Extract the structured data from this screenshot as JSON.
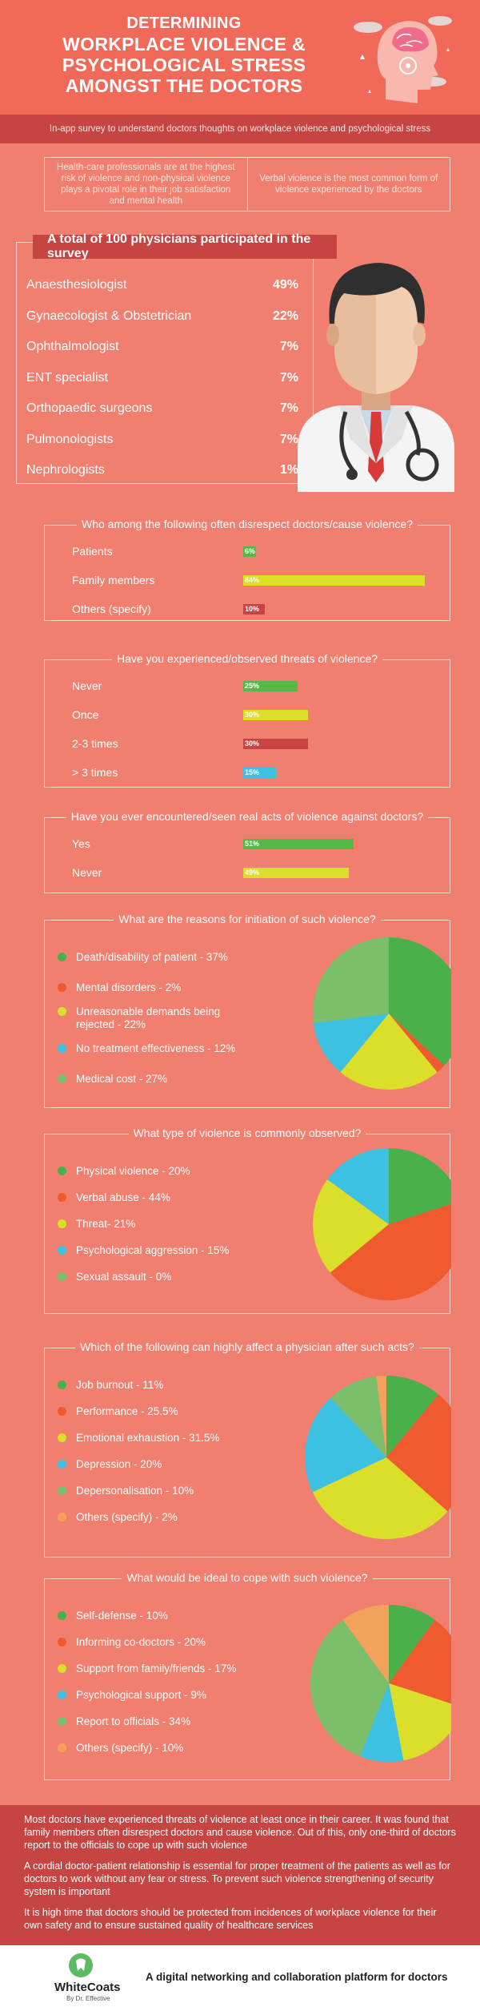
{
  "header": {
    "title_line1": "DETERMINING",
    "title_line2": "WORKPLACE VIOLENCE &",
    "title_line3": "PSYCHOLOGICAL STRESS",
    "title_line4": "AMONGST THE DOCTORS"
  },
  "banner": "In-app survey to understand doctors thoughts on workplace violence and psychological stress",
  "intro": {
    "left": "Health-care professionals are at the highest risk of violence and non-physical violence plays a pivotal role in their job satisfaction and mental health",
    "right": "Verbal violence is the most common form of violence experienced by the doctors"
  },
  "physicians": {
    "heading": "A total of 100 physicians participated in the survey",
    "rows": [
      {
        "label": "Anaesthesiologist",
        "pct": "49%"
      },
      {
        "label": "Gynaecologist & Obstetrician",
        "pct": "22%"
      },
      {
        "label": "Ophthalmologist",
        "pct": "7%"
      },
      {
        "label": "ENT specialist",
        "pct": "7%"
      },
      {
        "label": "Orthopaedic surgeons",
        "pct": "7%"
      },
      {
        "label": "Pulmonologists",
        "pct": "7%"
      },
      {
        "label": "Nephrologists",
        "pct": "1%"
      }
    ]
  },
  "q1": {
    "title": "Who among the following often disrespect doctors/cause violence?",
    "rows": [
      {
        "label": "Patients",
        "value": 6,
        "text": "6%",
        "color": "#55b947"
      },
      {
        "label": "Family members",
        "value": 84,
        "text": "84%",
        "color": "#dcdf2a"
      },
      {
        "label": "Others (specify)",
        "value": 10,
        "text": "10%",
        "color": "#c64542"
      }
    ]
  },
  "q2": {
    "title": "Have you experienced/observed threats of violence?",
    "rows": [
      {
        "label": "Never",
        "value": 25,
        "text": "25%",
        "color": "#55b947"
      },
      {
        "label": "Once",
        "value": 30,
        "text": "30%",
        "color": "#dcdf2a"
      },
      {
        "label": "2-3 times",
        "value": 30,
        "text": "30%",
        "color": "#c64542"
      },
      {
        "label": "> 3 times",
        "value": 15,
        "text": "15%",
        "color": "#3cc2e0"
      }
    ]
  },
  "q3": {
    "title": "Have you ever encountered/seen real acts of violence against doctors?",
    "rows": [
      {
        "label": "Yes",
        "value": 51,
        "text": "51%",
        "color": "#55b947"
      },
      {
        "label": "Never",
        "value": 49,
        "text": "49%",
        "color": "#dcdf2a"
      }
    ]
  },
  "chart_data": [
    {
      "type": "bar",
      "title": "Who among the following often disrespect doctors/cause violence?",
      "categories": [
        "Patients",
        "Family members",
        "Others (specify)"
      ],
      "values": [
        6,
        84,
        10
      ]
    },
    {
      "type": "bar",
      "title": "Have you experienced/observed threats of violence?",
      "categories": [
        "Never",
        "Once",
        "2-3 times",
        "> 3 times"
      ],
      "values": [
        25,
        30,
        30,
        15
      ]
    },
    {
      "type": "bar",
      "title": "Have you ever encountered/seen real acts of violence against doctors?",
      "categories": [
        "Yes",
        "Never"
      ],
      "values": [
        51,
        49
      ]
    },
    {
      "type": "pie",
      "title": "What are the reasons for initiation of such violence?",
      "slices": [
        {
          "label": "Death/disability of patient - 37%",
          "value": 37,
          "color": "#49b04a"
        },
        {
          "label": "Mental disorders - 2%",
          "value": 2,
          "color": "#ef5a2e"
        },
        {
          "label": "Unreasonable demands being rejected - 22%",
          "value": 22,
          "color": "#dcdf2a"
        },
        {
          "label": "No treatment effectiveness - 12%",
          "value": 12,
          "color": "#3cc2e0"
        },
        {
          "label": "Medical cost - 27%",
          "value": 27,
          "color": "#7bbf6a"
        }
      ]
    },
    {
      "type": "pie",
      "title": "What type of violence is commonly observed?",
      "slices": [
        {
          "label": "Physical violence - 20%",
          "value": 20,
          "color": "#49b04a"
        },
        {
          "label": "Verbal abuse - 44%",
          "value": 44,
          "color": "#ef5a2e"
        },
        {
          "label": "Threat- 21%",
          "value": 21,
          "color": "#dcdf2a"
        },
        {
          "label": "Psychological aggression - 15%",
          "value": 15,
          "color": "#3cc2e0"
        },
        {
          "label": "Sexual assault - 0%",
          "value": 0,
          "color": "#7bbf6a"
        }
      ]
    },
    {
      "type": "pie",
      "title": "Which of the following can highly affect a physician after such acts?",
      "slices": [
        {
          "label": "Job burnout - 11%",
          "value": 11,
          "color": "#49b04a"
        },
        {
          "label": "Performance - 25.5%",
          "value": 25.5,
          "color": "#ef5a2e"
        },
        {
          "label": "Emotional exhaustion - 31.5%",
          "value": 31.5,
          "color": "#dcdf2a"
        },
        {
          "label": "Depression - 20%",
          "value": 20,
          "color": "#3cc2e0"
        },
        {
          "label": "Depersonalisation - 10%",
          "value": 10,
          "color": "#7bbf6a"
        },
        {
          "label": "Others (specify) - 2%",
          "value": 2,
          "color": "#f3a25e"
        }
      ]
    },
    {
      "type": "pie",
      "title": "What would be ideal to cope with such violence?",
      "slices": [
        {
          "label": "Self-defense - 10%",
          "value": 10,
          "color": "#49b04a"
        },
        {
          "label": "Informing co-doctors - 20%",
          "value": 20,
          "color": "#ef5a2e"
        },
        {
          "label": "Support from family/friends - 17%",
          "value": 17,
          "color": "#dcdf2a"
        },
        {
          "label": "Psychological support - 9%",
          "value": 9,
          "color": "#3cc2e0"
        },
        {
          "label": "Report to officials - 34%",
          "value": 34,
          "color": "#7bbf6a"
        },
        {
          "label": "Others (specify) - 10%",
          "value": 10,
          "color": "#f3a25e"
        }
      ]
    }
  ],
  "conclusion": {
    "p1": "Most doctors have experienced threats of violence at least once in their career. It was found that family members often disrespect doctors and cause violence. Out of this, only one-third of doctors report to the officials to cope up with such violence",
    "p2": "A cordial doctor-patient relationship is essential for proper treatment of the patients as well as for doctors to work without any fear or stress. To prevent such violence strengthening of security system is important",
    "p3": "It is high time that doctors should be protected from incidences of workplace violence for their own safety and to ensure sustained quality of healthcare services"
  },
  "footer": {
    "brand": "WhiteCoats",
    "sub": "By Dr. Effective",
    "tagline": "A digital networking and collaboration platform for doctors"
  }
}
